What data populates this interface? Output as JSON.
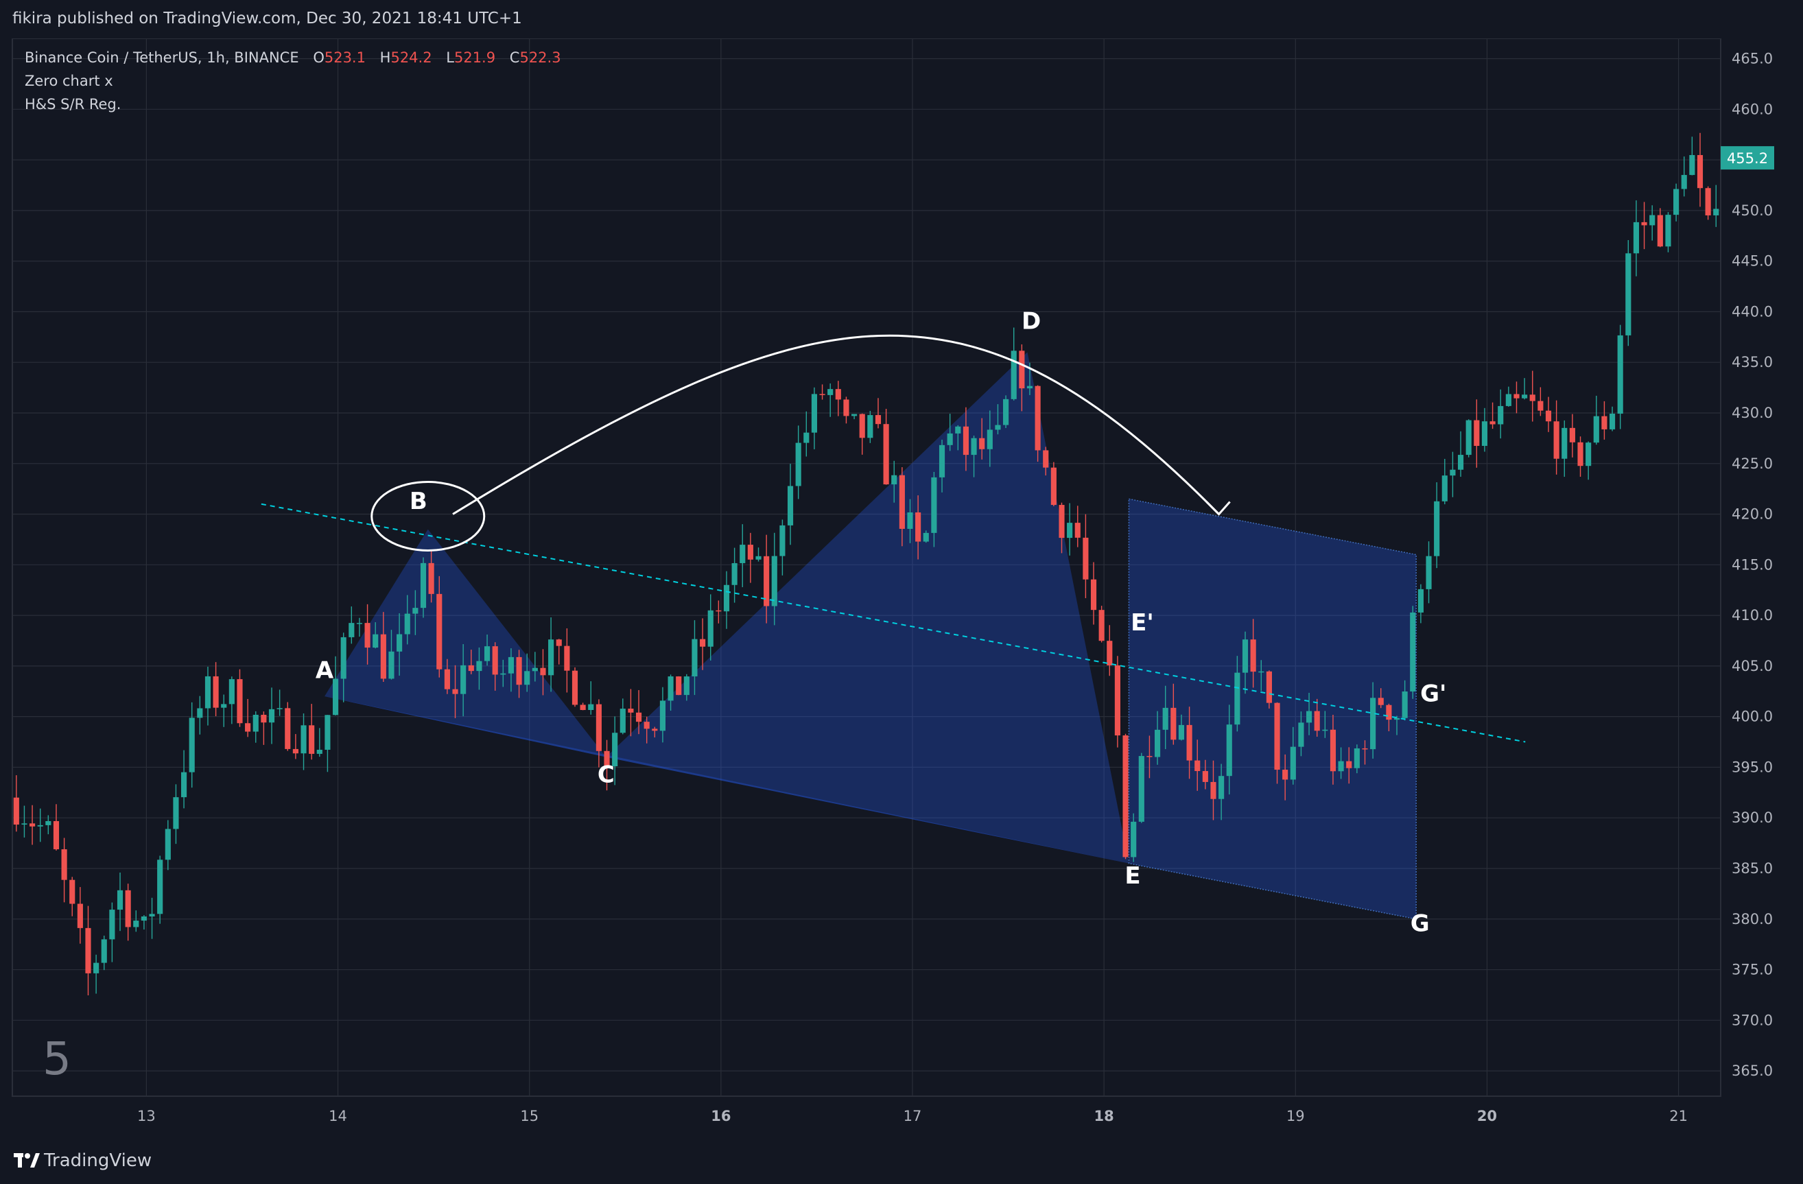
{
  "header": {
    "publisher": "fikira published on TradingView.com, Dec 30, 2021 18:41 UTC+1"
  },
  "legend": {
    "symbol": "Binance Coin / TetherUS, 1h, BINANCE",
    "o_label": "O",
    "o_value": "523.1",
    "h_label": "H",
    "h_value": "524.2",
    "l_label": "L",
    "l_value": "521.9",
    "c_label": "C",
    "c_value": "522.3",
    "indicator1": "Zero chart x",
    "indicator2": "H&S S/R Reg."
  },
  "footer": {
    "brand": "TradingView",
    "pane_number": "5"
  },
  "colors": {
    "background": "#131722",
    "grid": "#2a2e39",
    "text": "#d1d4dc",
    "up": "#26a69a",
    "down": "#ef5350",
    "pattern_fill": "#2962ff",
    "trendline": "#00d1e0"
  },
  "chart_data": {
    "type": "candlestick",
    "timeframe": "1h",
    "symbol": "Binance Coin / TetherUS, 1h, BINANCE",
    "x_ticks": [
      "13",
      "14",
      "15",
      "16",
      "17",
      "18",
      "19",
      "20",
      "21"
    ],
    "x_ticks_day": [
      13,
      14,
      15,
      16,
      17,
      18,
      19,
      20,
      21
    ],
    "x_range_days": [
      12.3,
      21.22
    ],
    "y_ticks": [
      "465.0",
      "460.0",
      "455.0",
      "450.0",
      "445.0",
      "440.0",
      "435.0",
      "430.0",
      "425.0",
      "420.0",
      "415.0",
      "410.0",
      "405.0",
      "400.0",
      "395.0",
      "390.0",
      "385.0",
      "380.0",
      "375.0",
      "370.0",
      "365.0"
    ],
    "y_range": [
      362.5,
      467
    ],
    "last_price": "455.2",
    "candle_close_anchors": [
      [
        12.3,
        392
      ],
      [
        12.5,
        388
      ],
      [
        12.7,
        374
      ],
      [
        12.85,
        383
      ],
      [
        13.0,
        378
      ],
      [
        13.1,
        389
      ],
      [
        13.2,
        396
      ],
      [
        13.3,
        402
      ],
      [
        13.45,
        402
      ],
      [
        13.6,
        399
      ],
      [
        13.75,
        399
      ],
      [
        13.9,
        397
      ],
      [
        14.0,
        404
      ],
      [
        14.1,
        411
      ],
      [
        14.25,
        405
      ],
      [
        14.35,
        407
      ],
      [
        14.45,
        416
      ],
      [
        14.55,
        401
      ],
      [
        14.7,
        406
      ],
      [
        14.85,
        404
      ],
      [
        15.0,
        406
      ],
      [
        15.1,
        406
      ],
      [
        15.2,
        404
      ],
      [
        15.3,
        402
      ],
      [
        15.4,
        396
      ],
      [
        15.5,
        402
      ],
      [
        15.65,
        400
      ],
      [
        15.75,
        402
      ],
      [
        15.9,
        407
      ],
      [
        16.05,
        414
      ],
      [
        16.15,
        416
      ],
      [
        16.25,
        411
      ],
      [
        16.35,
        424
      ],
      [
        16.55,
        433
      ],
      [
        16.65,
        428
      ],
      [
        16.8,
        428
      ],
      [
        16.95,
        420
      ],
      [
        17.05,
        415
      ],
      [
        17.15,
        428
      ],
      [
        17.3,
        426
      ],
      [
        17.45,
        427
      ],
      [
        17.55,
        436
      ],
      [
        17.65,
        428
      ],
      [
        17.75,
        420
      ],
      [
        17.85,
        419
      ],
      [
        17.95,
        408
      ],
      [
        18.05,
        403
      ],
      [
        18.12,
        386
      ],
      [
        18.2,
        396
      ],
      [
        18.3,
        402
      ],
      [
        18.45,
        397
      ],
      [
        18.6,
        392
      ],
      [
        18.75,
        408
      ],
      [
        18.85,
        401
      ],
      [
        18.95,
        392
      ],
      [
        19.05,
        401
      ],
      [
        19.15,
        398
      ],
      [
        19.25,
        393
      ],
      [
        19.35,
        398
      ],
      [
        19.45,
        402
      ],
      [
        19.55,
        400
      ],
      [
        19.65,
        414
      ],
      [
        19.75,
        421
      ],
      [
        19.9,
        427
      ],
      [
        20.05,
        429
      ],
      [
        20.2,
        431
      ],
      [
        20.35,
        428
      ],
      [
        20.45,
        425
      ],
      [
        20.55,
        428
      ],
      [
        20.65,
        430
      ],
      [
        20.75,
        448
      ],
      [
        20.85,
        449
      ],
      [
        20.95,
        448
      ],
      [
        21.05,
        457
      ],
      [
        21.15,
        447
      ],
      [
        21.22,
        455
      ]
    ],
    "pattern": {
      "points": {
        "A": [
          13.93,
          402
        ],
        "B": [
          14.47,
          418.5
        ],
        "C": [
          15.4,
          396
        ],
        "D": [
          17.6,
          436
        ],
        "E": [
          18.13,
          385.5
        ],
        "G": [
          19.63,
          380
        ],
        "E_box_top": [
          18.13,
          421.5
        ],
        "G_box_top": [
          19.63,
          416
        ]
      },
      "neckline": [
        [
          13.6,
          421
        ],
        [
          20.2,
          397.5
        ]
      ],
      "projection_arrow": [
        [
          14.6,
          420
        ],
        [
          16.5,
          442
        ],
        [
          17.3,
          445
        ],
        [
          18.6,
          420
        ]
      ]
    },
    "annotations": [
      {
        "label": "A",
        "day": 13.93,
        "price": 403.8
      },
      {
        "label": "B",
        "day": 14.42,
        "price": 420.5
      },
      {
        "label": "C",
        "day": 15.4,
        "price": 393.5
      },
      {
        "label": "D",
        "day": 17.62,
        "price": 438.3
      },
      {
        "label": "E'",
        "day": 18.2,
        "price": 408.5
      },
      {
        "label": "E",
        "day": 18.15,
        "price": 383.5
      },
      {
        "label": "G'",
        "day": 19.72,
        "price": 401.5
      },
      {
        "label": "G",
        "day": 19.65,
        "price": 378.8
      }
    ]
  }
}
